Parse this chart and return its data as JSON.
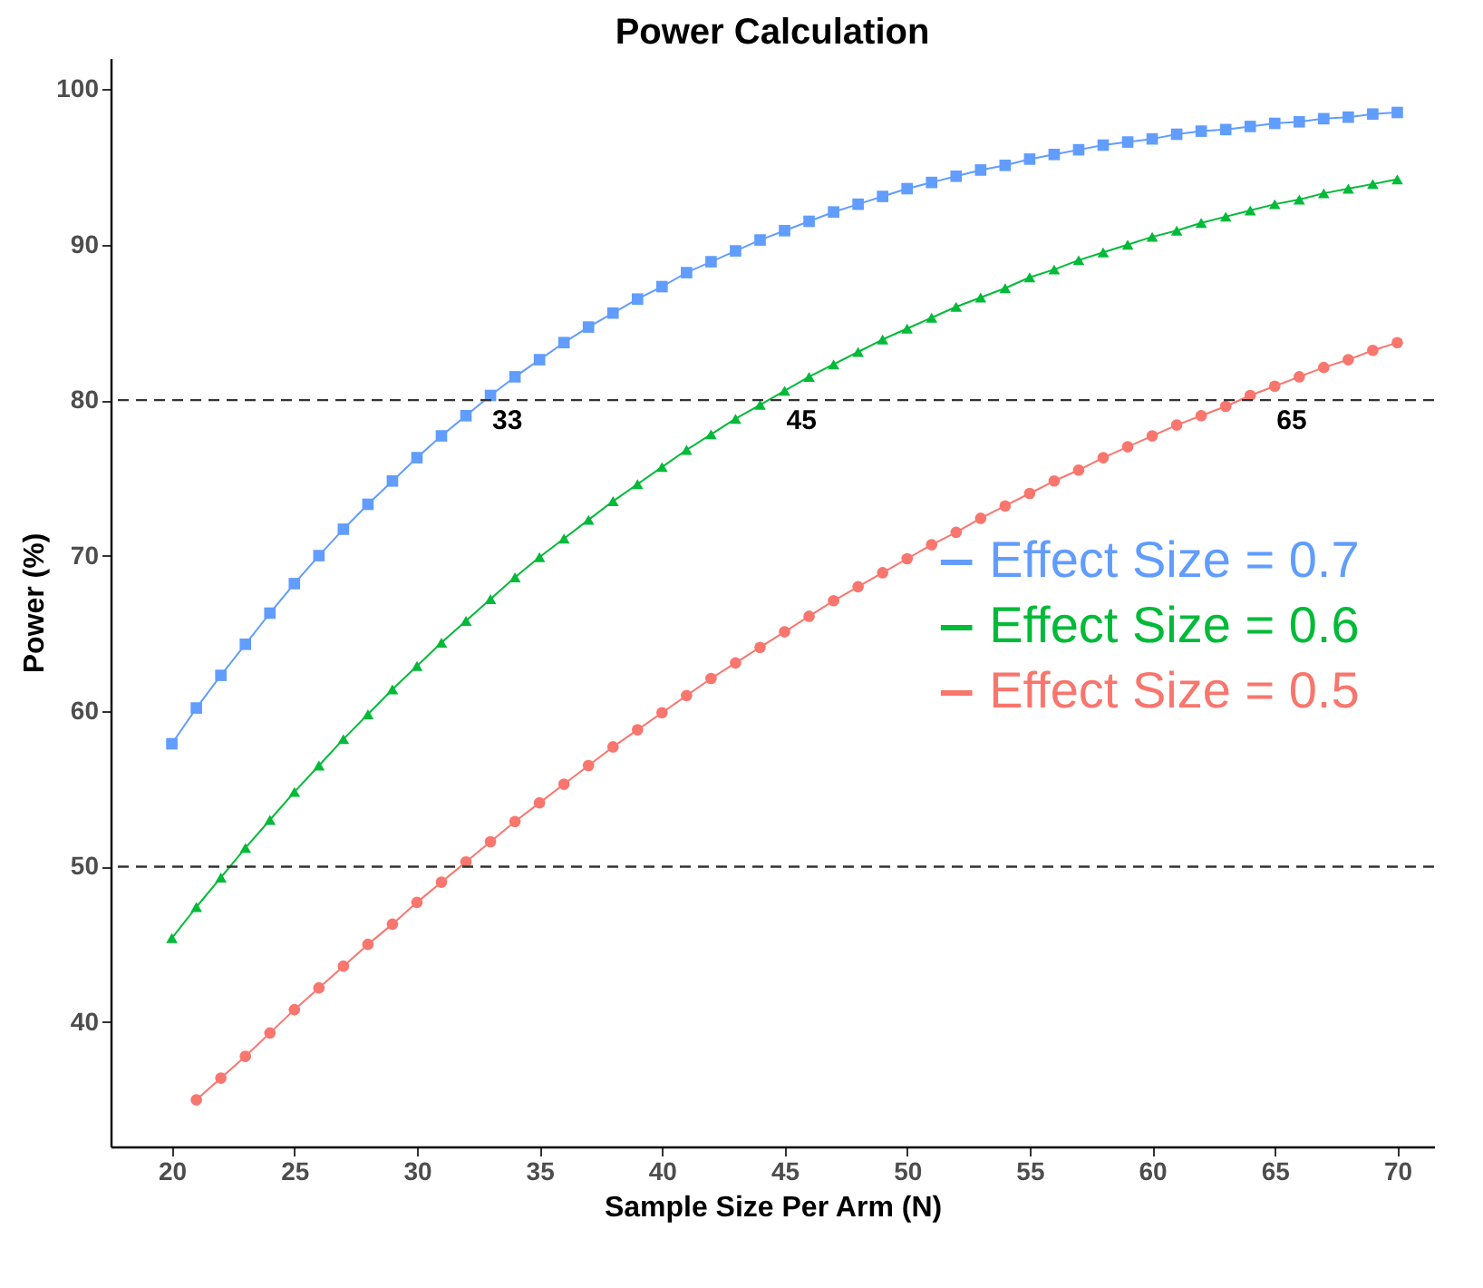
{
  "chart_data": {
    "type": "line",
    "title": "Power Calculation",
    "xlabel": "Sample Size Per Arm (N)",
    "ylabel": "Power (%)",
    "x": [
      20,
      21,
      22,
      23,
      24,
      25,
      26,
      27,
      28,
      29,
      30,
      31,
      32,
      33,
      34,
      35,
      36,
      37,
      38,
      39,
      40,
      41,
      42,
      43,
      44,
      45,
      46,
      47,
      48,
      49,
      50,
      51,
      52,
      53,
      54,
      55,
      56,
      57,
      58,
      59,
      60,
      61,
      62,
      63,
      64,
      65,
      66,
      67,
      68,
      69,
      70
    ],
    "series": [
      {
        "name": "Effect Size = 0.7",
        "color": "#619cff",
        "marker": "square",
        "values": [
          57.9,
          60.2,
          62.3,
          64.3,
          66.3,
          68.2,
          70.0,
          71.7,
          73.3,
          74.8,
          76.3,
          77.7,
          79.0,
          80.3,
          81.5,
          82.6,
          83.7,
          84.7,
          85.6,
          86.5,
          87.3,
          88.2,
          88.9,
          89.6,
          90.3,
          90.9,
          91.5,
          92.1,
          92.6,
          93.1,
          93.6,
          94.0,
          94.4,
          94.8,
          95.1,
          95.5,
          95.8,
          96.1,
          96.4,
          96.6,
          96.8,
          97.1,
          97.3,
          97.4,
          97.6,
          97.8,
          97.9,
          98.1,
          98.2,
          98.4,
          98.5
        ]
      },
      {
        "name": "Effect Size = 0.6",
        "color": "#00ba38",
        "marker": "triangle",
        "values": [
          45.4,
          47.4,
          49.3,
          51.2,
          53.0,
          54.8,
          56.5,
          58.2,
          59.8,
          61.4,
          62.9,
          64.4,
          65.8,
          67.2,
          68.6,
          69.9,
          71.1,
          72.3,
          73.5,
          74.6,
          75.7,
          76.8,
          77.8,
          78.8,
          79.7,
          80.6,
          81.5,
          82.3,
          83.1,
          83.9,
          84.6,
          85.3,
          86.0,
          86.6,
          87.2,
          87.9,
          88.4,
          89.0,
          89.5,
          90.0,
          90.5,
          90.9,
          91.4,
          91.8,
          92.2,
          92.6,
          92.9,
          93.3,
          93.6,
          93.9,
          94.2
        ]
      },
      {
        "name": "Effect Size = 0.5",
        "color": "#f8766d",
        "marker": "circle",
        "x": [
          21,
          22,
          23,
          24,
          25,
          26,
          27,
          28,
          29,
          30,
          31,
          32,
          33,
          34,
          35,
          36,
          37,
          38,
          39,
          40,
          41,
          42,
          43,
          44,
          45,
          46,
          47,
          48,
          49,
          50,
          51,
          52,
          53,
          54,
          55,
          56,
          57,
          58,
          59,
          60,
          61,
          62,
          63,
          64,
          65,
          66,
          67,
          68,
          69,
          70
        ],
        "values": [
          35.0,
          36.4,
          37.8,
          39.3,
          40.8,
          42.2,
          43.6,
          45.0,
          46.3,
          47.7,
          49.0,
          50.3,
          51.6,
          52.9,
          54.1,
          55.3,
          56.5,
          57.7,
          58.8,
          59.9,
          61.0,
          62.1,
          63.1,
          64.1,
          65.1,
          66.1,
          67.1,
          68.0,
          68.9,
          69.8,
          70.7,
          71.5,
          72.4,
          73.2,
          74.0,
          74.8,
          75.5,
          76.3,
          77.0,
          77.7,
          78.4,
          79.0,
          79.6,
          80.3,
          80.9,
          81.5,
          82.1,
          82.6,
          83.2,
          83.7
        ]
      }
    ],
    "xlim": [
      17.5,
      71.5
    ],
    "xticks": [
      20,
      25,
      30,
      35,
      40,
      45,
      50,
      55,
      60,
      65,
      70
    ],
    "ylim": [
      32,
      102
    ],
    "yticks": [
      40,
      50,
      60,
      70,
      80,
      90,
      100
    ],
    "ref_lines": [
      {
        "axis": "y",
        "value": 80,
        "line_style": "dashed"
      },
      {
        "axis": "y",
        "value": 50,
        "line_style": "dashed"
      }
    ],
    "annotations": [
      {
        "text": "33",
        "x": 33,
        "y": 80
      },
      {
        "text": "45",
        "x": 45,
        "y": 80
      },
      {
        "text": "65",
        "x": 65,
        "y": 80
      }
    ],
    "legend": "right",
    "grid": false
  }
}
